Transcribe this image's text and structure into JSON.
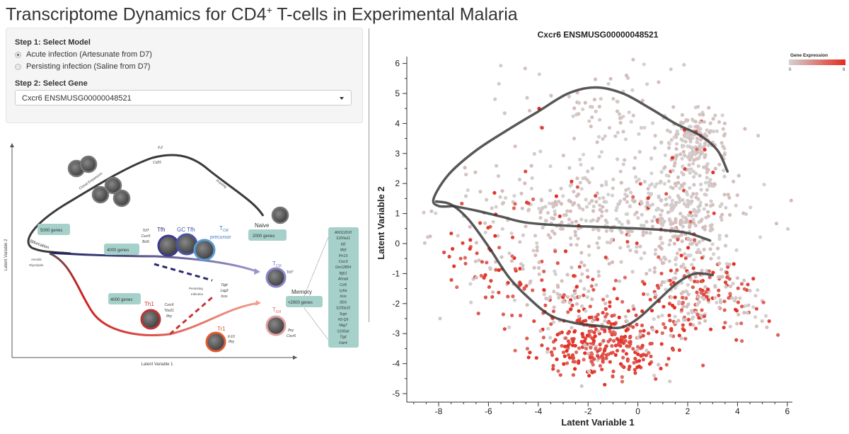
{
  "title": {
    "main": "Transcriptome Dynamics for CD4",
    "sup": "+",
    "rest": " T-cells in Experimental Malaria"
  },
  "controls": {
    "step1_label": "Step 1: Select Model",
    "models": [
      {
        "label": "Acute infection (Artesunate from D7)",
        "selected": true
      },
      {
        "label": "Persisting infection (Saline from D7)",
        "selected": false
      }
    ],
    "step2_label": "Step 2: Select Gene",
    "gene_selected": "Cxcr6 ENSMUSG00000048521"
  },
  "schematic": {
    "y_axis": "Latent Variable 2",
    "x_axis": "Latent Variable 1",
    "top_labels": {
      "il2": "Il-2",
      "cd25": "Cd25",
      "clonal": "Clonal Expansion",
      "priming": "Priming"
    },
    "naive": "Naive",
    "bifurcation": "Bifurcation",
    "aerobic": [
      "Aerobic",
      "Glycolysis"
    ],
    "persisting": [
      "Persisting",
      "Infection"
    ],
    "boxes": {
      "b5000": "5000 genes",
      "b4000a": "4000 genes",
      "b2000": "2000 genes",
      "b4000b": "4000 genes",
      "b_lt2000": "<2000 genes"
    },
    "tfh_genes": [
      "Tcf7",
      "Cxcr5",
      "Bcl6"
    ],
    "tfh": "Tfh",
    "gctfh": "GC Tfh",
    "tcm_precursor": [
      "T",
      "CM",
      "precursor"
    ],
    "tcm": [
      "T",
      "CM"
    ],
    "tcm_gene": "Tcf7",
    "tem": [
      "T",
      "EM"
    ],
    "tem_genes": [
      "Ifny",
      "Cxcr6"
    ],
    "th1": "Th1",
    "th1_genes": [
      "Cxcr6",
      "Tbx21",
      "Ifny"
    ],
    "tr1": "Tr1",
    "tr1_genes": [
      "Il-10",
      "Ifny"
    ],
    "persist_genes": [
      "Tigit",
      "Lag3",
      "Icos"
    ],
    "memory": "Memory",
    "memory_genes": [
      "AW112010",
      "S100a11",
      "Id2",
      "Maf",
      "Prr13",
      "Cxcr3",
      "Gm12854",
      "Itgb1",
      "Ahnak",
      "Ccl5",
      "Ly6a",
      "Icos",
      "Il2rb",
      "S100a10",
      "Srgn",
      "H2-Q6",
      "Nkg7",
      "S100a6",
      "Tigit",
      "Folr4"
    ]
  },
  "colors": {
    "low": "#d3d3d3",
    "high": "#e32b20",
    "teal": "#a6d1cb",
    "trajectory": "#3a3a3a"
  },
  "chart_data": {
    "type": "scatter",
    "title": "Cxcr6 ENSMUSG00000048521",
    "xlabel": "Latent Variable 1",
    "ylabel": "Latent Variable 2",
    "xlim": [
      -9.2,
      6.2
    ],
    "ylim": [
      -5.2,
      6.4
    ],
    "xticks": [
      -8,
      -6,
      -4,
      -2,
      0,
      2,
      4,
      6
    ],
    "yticks": [
      -5,
      -4,
      -3,
      -2,
      -1,
      0,
      1,
      2,
      3,
      4,
      5,
      6
    ],
    "legend": {
      "title": "Gene Expression",
      "min": "0",
      "max": "9",
      "placement": "top-right"
    },
    "point_clusters": [
      {
        "cx": 2.3,
        "cy": 3.4,
        "sx": 0.65,
        "sy": 0.5,
        "n": 170,
        "expr": 0.04
      },
      {
        "cx": -1.2,
        "cy": 4.4,
        "sx": 1.9,
        "sy": 0.9,
        "n": 90,
        "expr": 0.02
      },
      {
        "cx": -1.5,
        "cy": 1.0,
        "sx": 2.9,
        "sy": 0.9,
        "n": 380,
        "expr": 0.06
      },
      {
        "cx": 1.9,
        "cy": 1.1,
        "sx": 0.9,
        "sy": 0.9,
        "n": 220,
        "expr": 0.08
      },
      {
        "cx": -1.3,
        "cy": -3.3,
        "sx": 1.4,
        "sy": 0.6,
        "n": 320,
        "expr": 0.9
      },
      {
        "cx": -6.0,
        "cy": -0.6,
        "sx": 0.9,
        "sy": 0.9,
        "n": 70,
        "expr": 0.75
      },
      {
        "cx": 2.3,
        "cy": -1.8,
        "sx": 1.0,
        "sy": 0.7,
        "n": 220,
        "expr": 0.5
      },
      {
        "cx": -3.0,
        "cy": -1.8,
        "sx": 1.2,
        "sy": 0.6,
        "n": 100,
        "expr": 0.45
      },
      {
        "cx": 4.5,
        "cy": -2.0,
        "sx": 0.6,
        "sy": 0.9,
        "n": 25,
        "expr": 0.5
      }
    ],
    "series": [
      {
        "name": "trajectory-top",
        "x": [
          3.6,
          3.2,
          2.5,
          1.5,
          0.5,
          -0.6,
          -1.7,
          -2.8,
          -4.0,
          -5.2,
          -6.5,
          -7.6,
          -8.2,
          -8.0,
          -7.4
        ],
        "y": [
          2.4,
          3.1,
          3.6,
          4.0,
          4.5,
          5.0,
          5.2,
          5.0,
          4.4,
          3.8,
          3.1,
          2.3,
          1.5,
          1.25,
          1.25
        ]
      },
      {
        "name": "trajectory-middle",
        "x": [
          -7.4,
          -6.5,
          -5.5,
          -4.5,
          -3.0,
          -1.5,
          0,
          1.0,
          2.0,
          2.9
        ],
        "y": [
          1.25,
          1.1,
          0.9,
          0.7,
          0.6,
          0.55,
          0.5,
          0.45,
          0.35,
          0.1
        ]
      },
      {
        "name": "trajectory-bottom",
        "x": [
          -8.1,
          -7.5,
          -6.8,
          -6.0,
          -5.2,
          -4.4,
          -3.5,
          -2.5,
          -1.5,
          -0.7,
          0,
          0.8,
          1.6,
          2.3,
          3.0
        ],
        "y": [
          1.4,
          1.3,
          0.8,
          -0.1,
          -1.1,
          -1.8,
          -2.4,
          -2.65,
          -2.75,
          -2.8,
          -2.5,
          -1.9,
          -1.3,
          -1.0,
          -1.05
        ]
      }
    ]
  }
}
